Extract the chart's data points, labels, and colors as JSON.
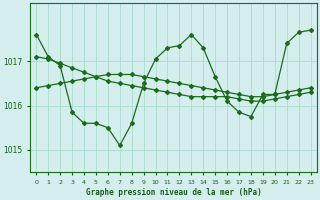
{
  "xlabel": "Graphe pression niveau de la mer (hPa)",
  "hours": [
    0,
    1,
    2,
    3,
    4,
    5,
    6,
    7,
    8,
    9,
    10,
    11,
    12,
    13,
    14,
    15,
    16,
    17,
    18,
    19,
    20,
    21,
    22,
    23
  ],
  "series_main": [
    1017.6,
    1017.1,
    1016.9,
    1015.85,
    1015.6,
    1015.6,
    1015.5,
    1015.1,
    1015.6,
    1016.5,
    1017.05,
    1017.3,
    1017.35,
    1017.6,
    1017.3,
    1016.65,
    1016.1,
    1015.85,
    1015.75,
    1016.25,
    1016.25,
    1017.4,
    1017.65,
    1017.7
  ],
  "series_trend1": [
    1017.1,
    1017.05,
    1016.95,
    1016.85,
    1016.75,
    1016.65,
    1016.55,
    1016.5,
    1016.45,
    1016.4,
    1016.35,
    1016.3,
    1016.25,
    1016.2,
    1016.2,
    1016.2,
    1016.2,
    1016.15,
    1016.1,
    1016.1,
    1016.15,
    1016.2,
    1016.25,
    1016.3
  ],
  "series_trend2": [
    1016.4,
    1016.45,
    1016.5,
    1016.55,
    1016.6,
    1016.65,
    1016.7,
    1016.7,
    1016.7,
    1016.65,
    1016.6,
    1016.55,
    1016.5,
    1016.45,
    1016.4,
    1016.35,
    1016.3,
    1016.25,
    1016.2,
    1016.2,
    1016.25,
    1016.3,
    1016.35,
    1016.4
  ],
  "line_color": "#1a6b1a",
  "bg_color": "#d4eeee",
  "grid_color": "#aaddcc",
  "ylim": [
    1014.5,
    1018.3
  ],
  "yticks": [
    1015,
    1016,
    1017
  ],
  "text_color": "#1a5c1a"
}
